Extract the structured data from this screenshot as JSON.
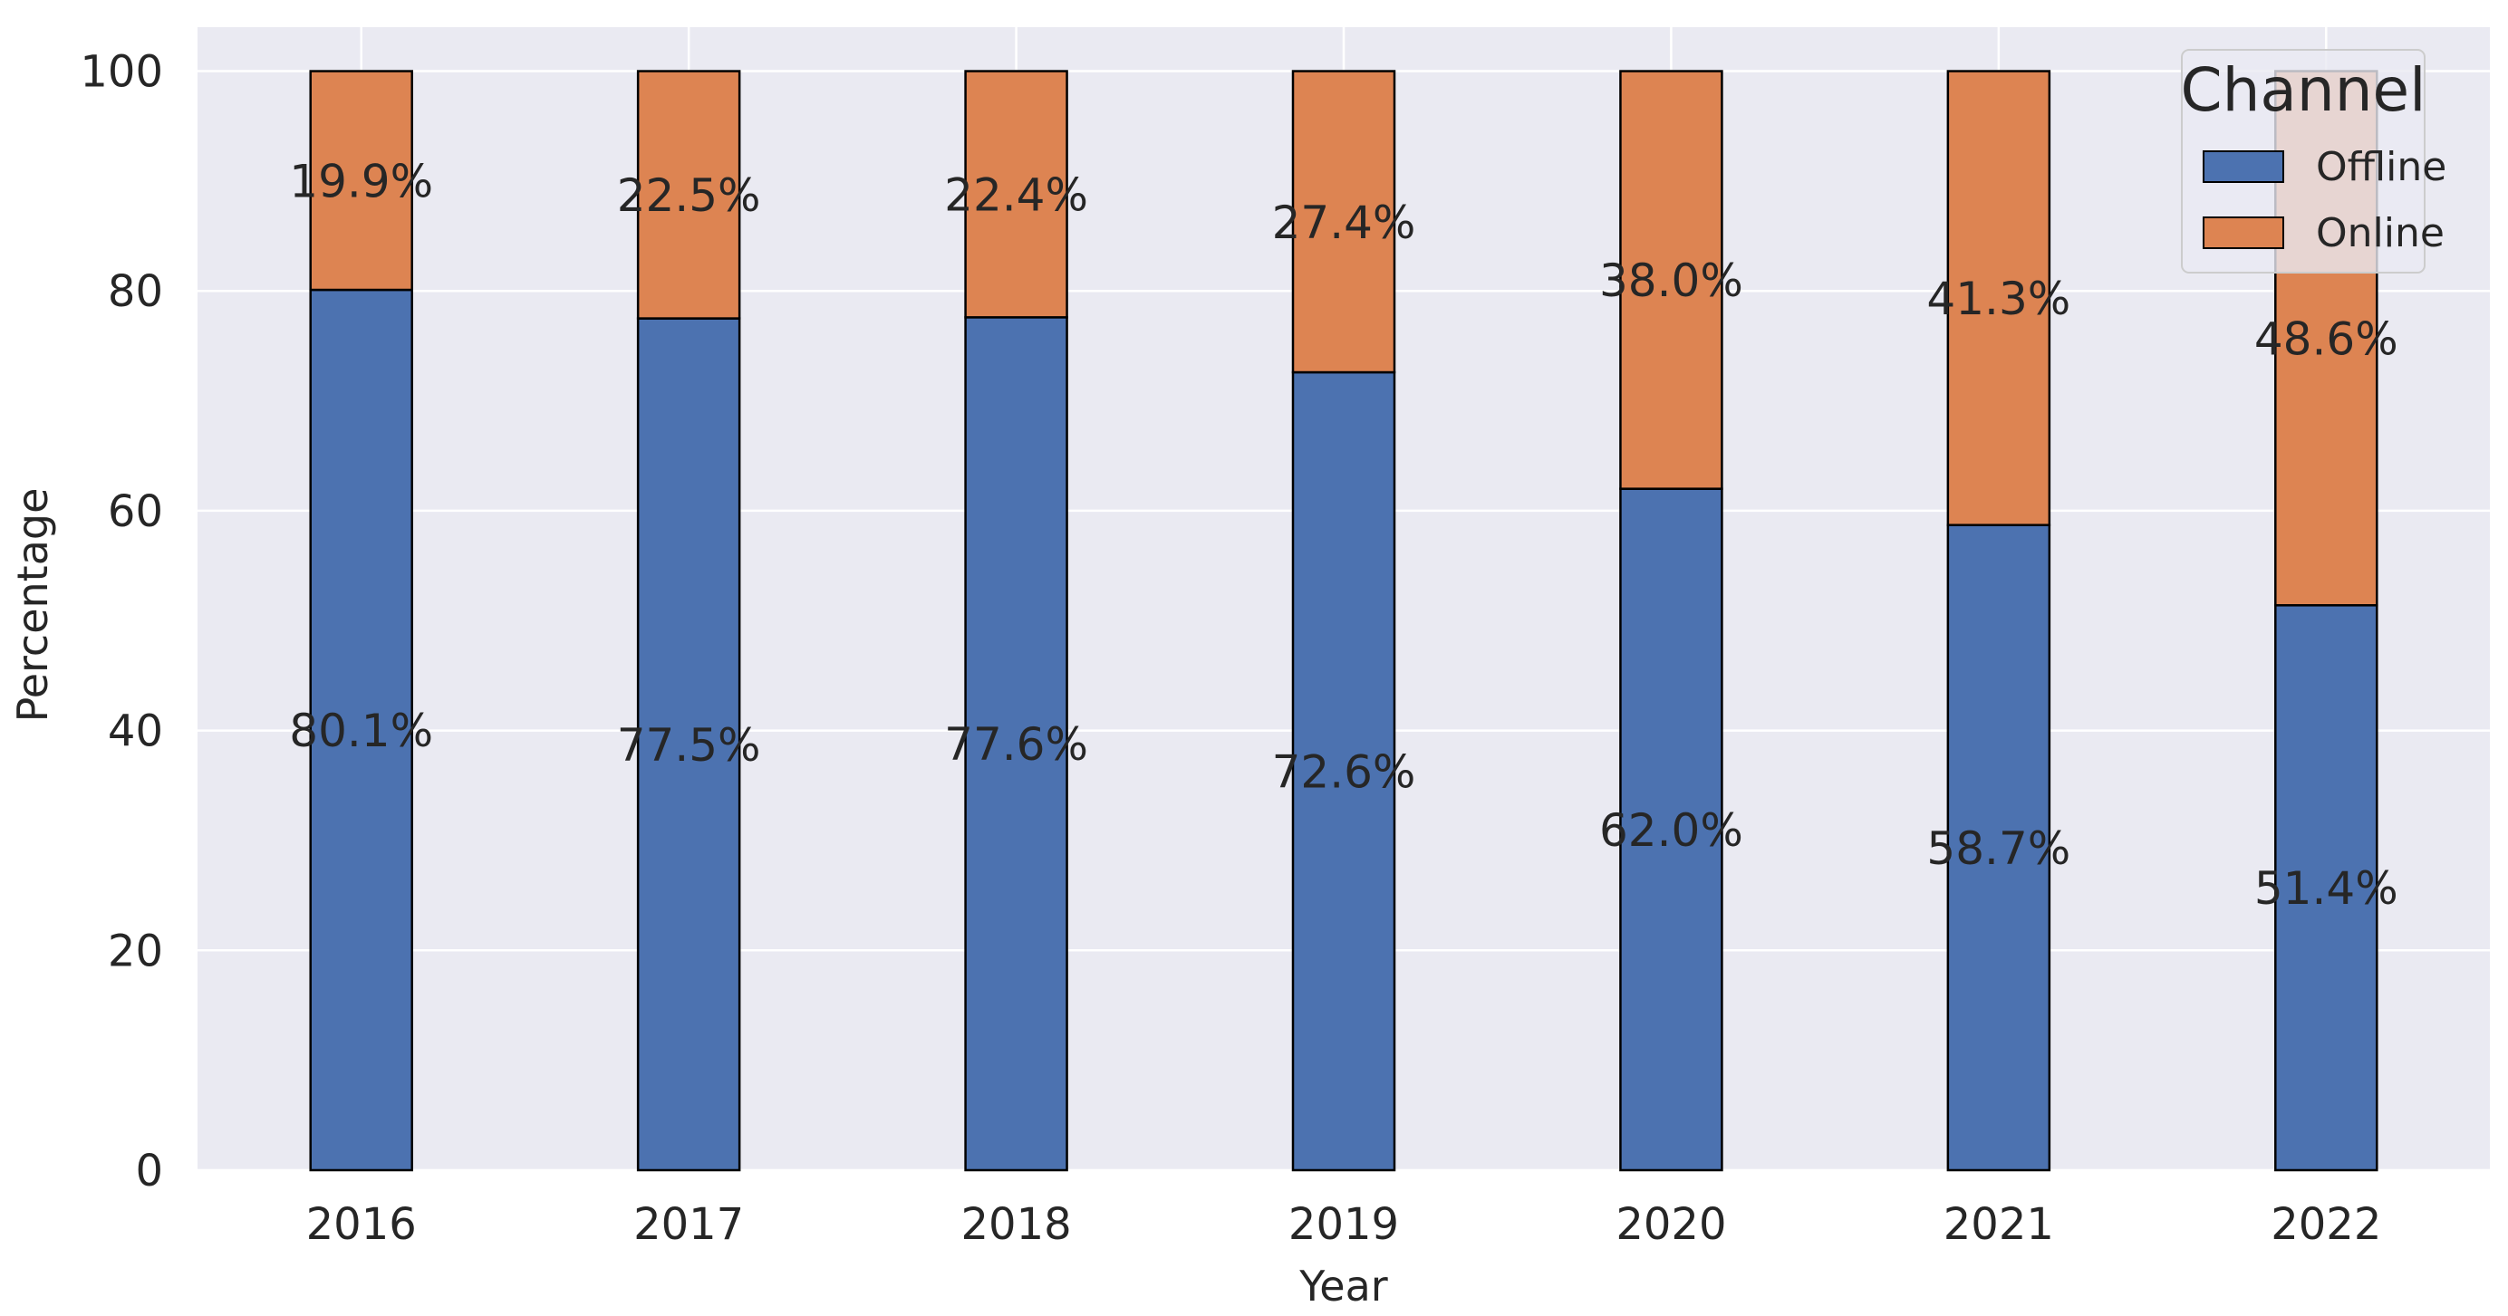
{
  "chart_data": {
    "type": "bar",
    "stacked": true,
    "categories": [
      "2016",
      "2017",
      "2018",
      "2019",
      "2020",
      "2021",
      "2022"
    ],
    "series": [
      {
        "name": "Offline",
        "values": [
          80.1,
          77.5,
          77.6,
          72.6,
          62.0,
          58.7,
          51.4
        ],
        "color": "#4c72b0"
      },
      {
        "name": "Online",
        "values": [
          19.9,
          22.5,
          22.4,
          27.4,
          38.0,
          41.3,
          48.6
        ],
        "color": "#dd8452"
      }
    ],
    "data_labels": {
      "Offline": [
        "80.1%",
        "77.5%",
        "77.6%",
        "72.6%",
        "62.0%",
        "58.7%",
        "51.4%"
      ],
      "Online": [
        "19.9%",
        "22.5%",
        "22.4%",
        "27.4%",
        "38.0%",
        "41.3%",
        "48.6%"
      ]
    },
    "title": "",
    "xlabel": "Year",
    "ylabel": "Percentage",
    "ylim": [
      0,
      104
    ],
    "yticks": [
      0,
      20,
      40,
      60,
      80,
      100
    ],
    "grid": true,
    "legend": {
      "title": "Channel",
      "position": "top-right"
    },
    "background_color": "#eaeaf2"
  }
}
